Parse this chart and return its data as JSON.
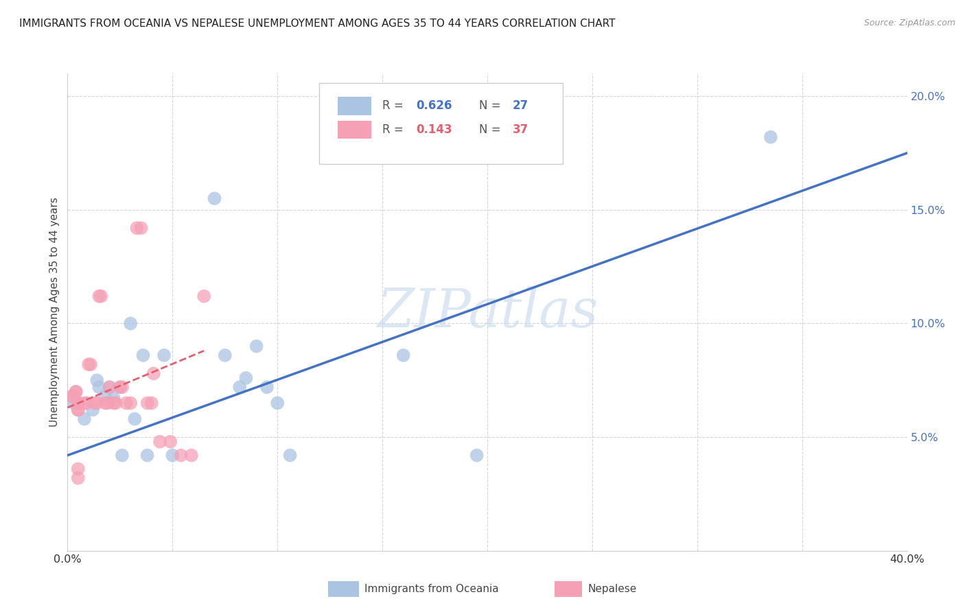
{
  "title": "IMMIGRANTS FROM OCEANIA VS NEPALESE UNEMPLOYMENT AMONG AGES 35 TO 44 YEARS CORRELATION CHART",
  "source": "Source: ZipAtlas.com",
  "ylabel": "Unemployment Among Ages 35 to 44 years",
  "xlim": [
    0.0,
    0.4
  ],
  "ylim": [
    0.0,
    0.21
  ],
  "yticks": [
    0.0,
    0.05,
    0.1,
    0.15,
    0.2
  ],
  "xticks": [
    0.0,
    0.05,
    0.1,
    0.15,
    0.2,
    0.25,
    0.3,
    0.35,
    0.4
  ],
  "legend_R1": "R = ",
  "legend_V1": "0.626",
  "legend_N1_label": "N = ",
  "legend_N1": "27",
  "legend_R2": "R = ",
  "legend_V2": "0.143",
  "legend_N2_label": "N = ",
  "legend_N2": "37",
  "color_blue": "#aac4e2",
  "color_pink": "#f5a0b5",
  "line_blue": "#4472c4",
  "line_pink": "#e06070",
  "watermark": "ZIPatlas",
  "background": "#ffffff",
  "grid_color": "#d5d5d5",
  "blue_x": [
    0.003,
    0.008,
    0.012,
    0.014,
    0.015,
    0.018,
    0.02,
    0.022,
    0.025,
    0.026,
    0.03,
    0.032,
    0.036,
    0.038,
    0.046,
    0.05,
    0.07,
    0.075,
    0.082,
    0.085,
    0.09,
    0.095,
    0.1,
    0.106,
    0.16,
    0.195,
    0.335
  ],
  "blue_y": [
    0.065,
    0.058,
    0.062,
    0.075,
    0.072,
    0.068,
    0.072,
    0.067,
    0.072,
    0.042,
    0.1,
    0.058,
    0.086,
    0.042,
    0.086,
    0.042,
    0.155,
    0.086,
    0.072,
    0.076,
    0.09,
    0.072,
    0.065,
    0.042,
    0.086,
    0.042,
    0.182
  ],
  "pink_x": [
    0.002,
    0.003,
    0.004,
    0.004,
    0.005,
    0.005,
    0.005,
    0.005,
    0.005,
    0.005,
    0.008,
    0.009,
    0.01,
    0.011,
    0.013,
    0.014,
    0.015,
    0.016,
    0.018,
    0.019,
    0.02,
    0.022,
    0.023,
    0.025,
    0.026,
    0.028,
    0.03,
    0.033,
    0.035,
    0.038,
    0.04,
    0.041,
    0.044,
    0.049,
    0.054,
    0.059,
    0.065
  ],
  "pink_y": [
    0.068,
    0.068,
    0.07,
    0.07,
    0.065,
    0.065,
    0.062,
    0.062,
    0.036,
    0.032,
    0.065,
    0.065,
    0.082,
    0.082,
    0.065,
    0.065,
    0.112,
    0.112,
    0.065,
    0.065,
    0.072,
    0.065,
    0.065,
    0.072,
    0.072,
    0.065,
    0.065,
    0.142,
    0.142,
    0.065,
    0.065,
    0.078,
    0.048,
    0.048,
    0.042,
    0.042,
    0.112
  ],
  "blue_line_x": [
    0.0,
    0.4
  ],
  "blue_line_y": [
    0.042,
    0.175
  ],
  "pink_line_x": [
    0.0,
    0.065
  ],
  "pink_line_y": [
    0.063,
    0.088
  ]
}
